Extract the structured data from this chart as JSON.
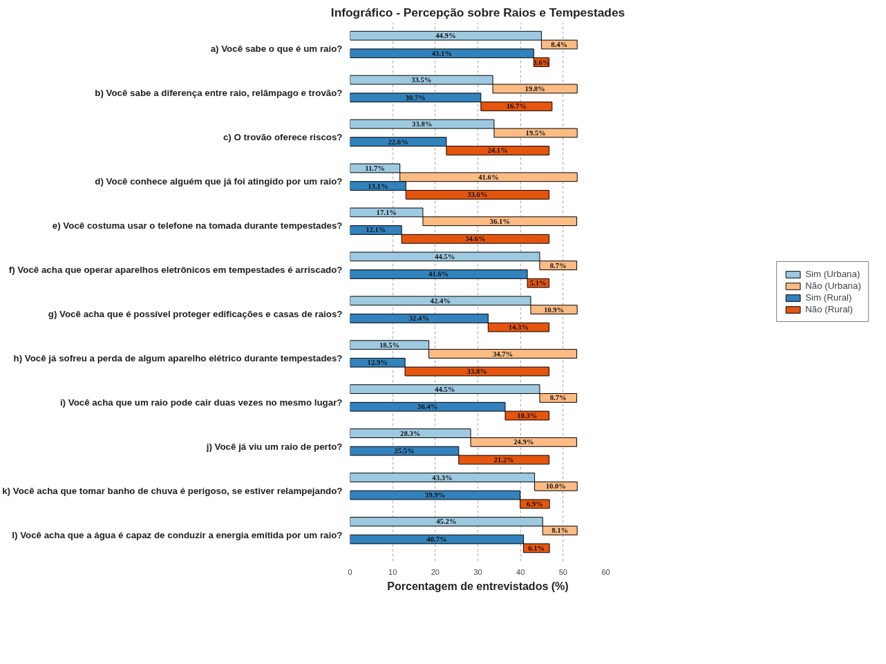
{
  "chart_data": {
    "type": "bar",
    "orientation": "horizontal",
    "title": "Infográfico - Percepção sobre Raios e Tempestades",
    "xlabel": "Porcentagem de entrevistados (%)",
    "categories": [
      "a) Você sabe o que é um raio?",
      "b) Você sabe a diferença entre raio, relâmpago e trovão?",
      "c) O trovão oferece riscos?",
      "d) Você conhece alguém que já foi atingido por um raio?",
      "e) Você costuma usar o telefone na tomada durante tempestades?",
      "f) Você acha que operar aparelhos eletrônicos em tempestades é arriscado?",
      "g) Você acha que é possível proteger edificações e casas de raios?",
      "h) Você já sofreu a perda de algum aparelho elétrico durante tempestades?",
      "i) Você acha que um raio pode cair duas vezes no mesmo lugar?",
      "j) Você já viu um raio de perto?",
      "k) Você acha que tomar banho de chuva é perigoso, se estiver relampejando?",
      "l) Você acha que a água é capaz de conduzir a energia emitida por um raio?"
    ],
    "series": [
      {
        "name": "Sim (Urbana)",
        "color": "#9ecae1",
        "values": [
          44.9,
          33.5,
          33.8,
          11.7,
          17.1,
          44.5,
          42.4,
          18.5,
          44.5,
          28.3,
          43.3,
          45.2
        ],
        "value_labels": [
          "44.9%",
          "33.5%",
          "33.8%",
          "11.7%",
          "17.1%",
          "44.5%",
          "42.4%",
          "18.5%",
          "44.5%",
          "28.3%",
          "43.3%",
          "45.2%"
        ]
      },
      {
        "name": "Não (Urbana)",
        "color": "#fdbb84",
        "base": [
          44.9,
          33.5,
          33.8,
          11.7,
          17.1,
          44.5,
          42.4,
          18.5,
          44.5,
          28.3,
          43.3,
          45.2
        ],
        "values": [
          8.4,
          19.8,
          19.5,
          41.6,
          36.1,
          8.7,
          10.9,
          34.7,
          8.7,
          24.9,
          10.0,
          8.1
        ],
        "value_labels": [
          "8.4%",
          "19.8%",
          "19.5%",
          "41.6%",
          "36.1%",
          "8.7%",
          "10.9%",
          "34.7%",
          "8.7%",
          "24.9%",
          "10.0%",
          "8.1%"
        ]
      },
      {
        "name": "Sim (Rural)",
        "color": "#3182bd",
        "values": [
          43.1,
          30.7,
          22.6,
          13.1,
          12.1,
          41.6,
          32.4,
          12.9,
          36.4,
          25.5,
          39.9,
          40.7
        ],
        "value_labels": [
          "43.1%",
          "30.7%",
          "22.6%",
          "13.1%",
          "12.1%",
          "41.6%",
          "32.4%",
          "12.9%",
          "36.4%",
          "25.5%",
          "39.9%",
          "40.7%"
        ]
      },
      {
        "name": "Não (Rural)",
        "color": "#e6550d",
        "base": [
          43.1,
          30.7,
          22.6,
          13.1,
          12.1,
          41.6,
          32.4,
          12.9,
          36.4,
          25.5,
          39.9,
          40.7
        ],
        "values": [
          3.6,
          16.7,
          24.1,
          33.6,
          34.6,
          5.1,
          14.3,
          33.8,
          10.3,
          21.2,
          6.9,
          6.1
        ],
        "value_labels": [
          "3.6%",
          "16.7%",
          "24.1%",
          "33.6%",
          "34.6%",
          "5.1%",
          "14.3%",
          "33.8%",
          "10.3%",
          "21.2%",
          "6.9%",
          "6.1%"
        ]
      }
    ],
    "xlim": [
      0,
      60
    ],
    "xticks": [
      0,
      10,
      20,
      30,
      40,
      50,
      60
    ],
    "grid": "x",
    "legend": "right"
  }
}
